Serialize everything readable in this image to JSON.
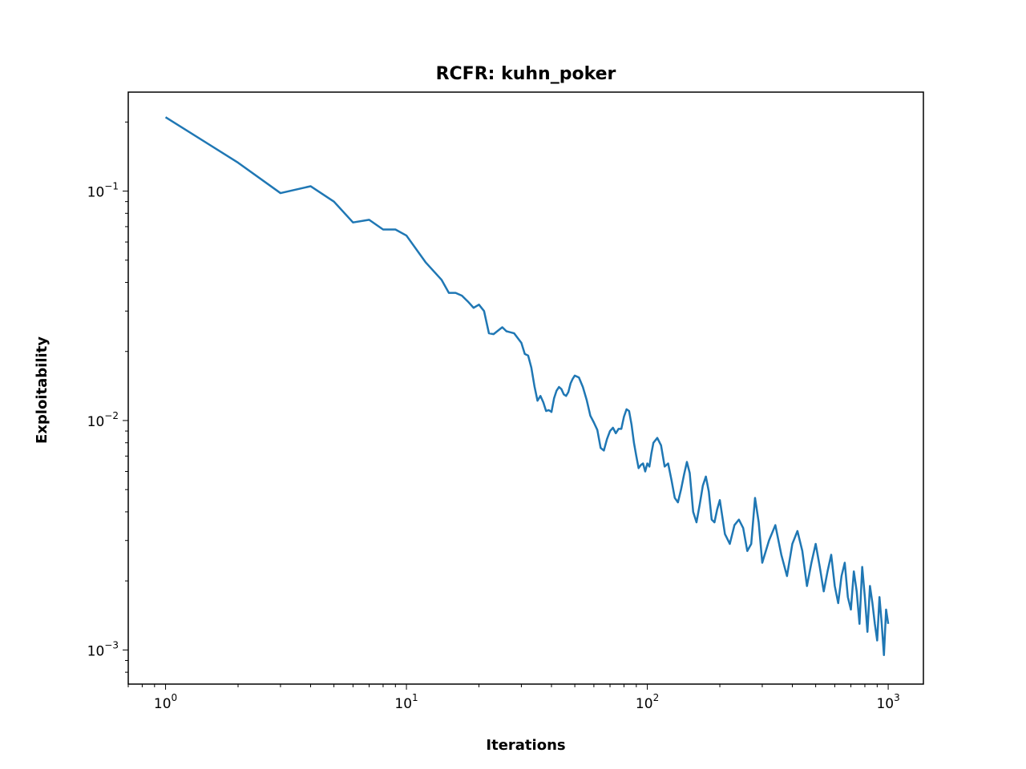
{
  "chart_data": {
    "type": "line",
    "title": "RCFR: kuhn_poker",
    "xlabel": "Iterations",
    "ylabel": "Exploitability",
    "xscale": "log",
    "yscale": "log",
    "xlim": [
      0.7,
      1400
    ],
    "ylim": [
      0.00071,
      0.27
    ],
    "grid": false,
    "x_ticks": [
      {
        "base": "10",
        "exp": "0",
        "value": 1
      },
      {
        "base": "10",
        "exp": "1",
        "value": 10
      },
      {
        "base": "10",
        "exp": "2",
        "value": 100
      },
      {
        "base": "10",
        "exp": "3",
        "value": 1000
      }
    ],
    "y_ticks": [
      {
        "base": "10",
        "exp": "−3",
        "value": 0.001
      },
      {
        "base": "10",
        "exp": "−2",
        "value": 0.01
      },
      {
        "base": "10",
        "exp": "−1",
        "value": 0.1
      }
    ],
    "series": [
      {
        "color": "#1f77b4",
        "x": [
          1,
          2,
          3,
          4,
          5,
          6,
          7,
          8,
          9,
          10,
          12,
          14,
          15,
          16,
          17,
          18,
          19,
          20,
          21,
          22,
          23,
          25,
          26,
          28,
          30,
          31,
          32,
          33,
          34,
          35,
          36,
          37,
          38,
          39,
          40,
          41,
          42,
          43,
          44,
          45,
          46,
          47,
          48,
          49,
          50,
          52,
          54,
          56,
          58,
          60,
          62,
          64,
          66,
          68,
          70,
          72,
          74,
          76,
          78,
          80,
          82,
          84,
          86,
          88,
          90,
          92,
          94,
          96,
          98,
          100,
          102,
          104,
          106,
          110,
          114,
          118,
          122,
          126,
          130,
          134,
          138,
          142,
          146,
          150,
          155,
          160,
          165,
          170,
          175,
          180,
          185,
          190,
          195,
          200,
          210,
          220,
          230,
          240,
          250,
          260,
          270,
          280,
          290,
          300,
          320,
          340,
          360,
          380,
          400,
          420,
          440,
          460,
          480,
          500,
          520,
          540,
          560,
          580,
          600,
          620,
          640,
          660,
          680,
          700,
          720,
          740,
          760,
          780,
          800,
          820,
          840,
          860,
          880,
          900,
          920,
          940,
          960,
          980,
          1000
        ],
        "y": [
          0.21,
          0.133,
          0.098,
          0.105,
          0.09,
          0.073,
          0.075,
          0.068,
          0.068,
          0.064,
          0.049,
          0.041,
          0.036,
          0.036,
          0.035,
          0.033,
          0.031,
          0.032,
          0.03,
          0.024,
          0.0238,
          0.0255,
          0.0245,
          0.024,
          0.0218,
          0.0195,
          0.0192,
          0.017,
          0.0141,
          0.0122,
          0.0128,
          0.012,
          0.011,
          0.0111,
          0.0109,
          0.0125,
          0.0135,
          0.014,
          0.0137,
          0.013,
          0.0128,
          0.0133,
          0.0145,
          0.0152,
          0.0157,
          0.0154,
          0.014,
          0.0123,
          0.0105,
          0.0098,
          0.0091,
          0.0076,
          0.0074,
          0.0083,
          0.009,
          0.0093,
          0.0088,
          0.0092,
          0.0092,
          0.0104,
          0.0112,
          0.011,
          0.0096,
          0.008,
          0.007,
          0.0062,
          0.0064,
          0.0065,
          0.006,
          0.0065,
          0.0063,
          0.0072,
          0.008,
          0.0084,
          0.0078,
          0.0063,
          0.0065,
          0.0055,
          0.0046,
          0.0044,
          0.005,
          0.0058,
          0.0066,
          0.0059,
          0.004,
          0.0036,
          0.0043,
          0.0052,
          0.0057,
          0.0049,
          0.0037,
          0.0036,
          0.0041,
          0.0045,
          0.0032,
          0.0029,
          0.0035,
          0.0037,
          0.0034,
          0.0027,
          0.0029,
          0.0046,
          0.0036,
          0.0024,
          0.003,
          0.0035,
          0.0026,
          0.0021,
          0.0029,
          0.0033,
          0.0027,
          0.0019,
          0.0024,
          0.0029,
          0.0023,
          0.0018,
          0.0022,
          0.0026,
          0.0019,
          0.0016,
          0.0021,
          0.0024,
          0.0017,
          0.0015,
          0.0022,
          0.0018,
          0.0013,
          0.0023,
          0.0017,
          0.0012,
          0.0019,
          0.0016,
          0.0013,
          0.0011,
          0.0017,
          0.0013,
          0.00095,
          0.0015,
          0.0013
        ]
      }
    ]
  }
}
